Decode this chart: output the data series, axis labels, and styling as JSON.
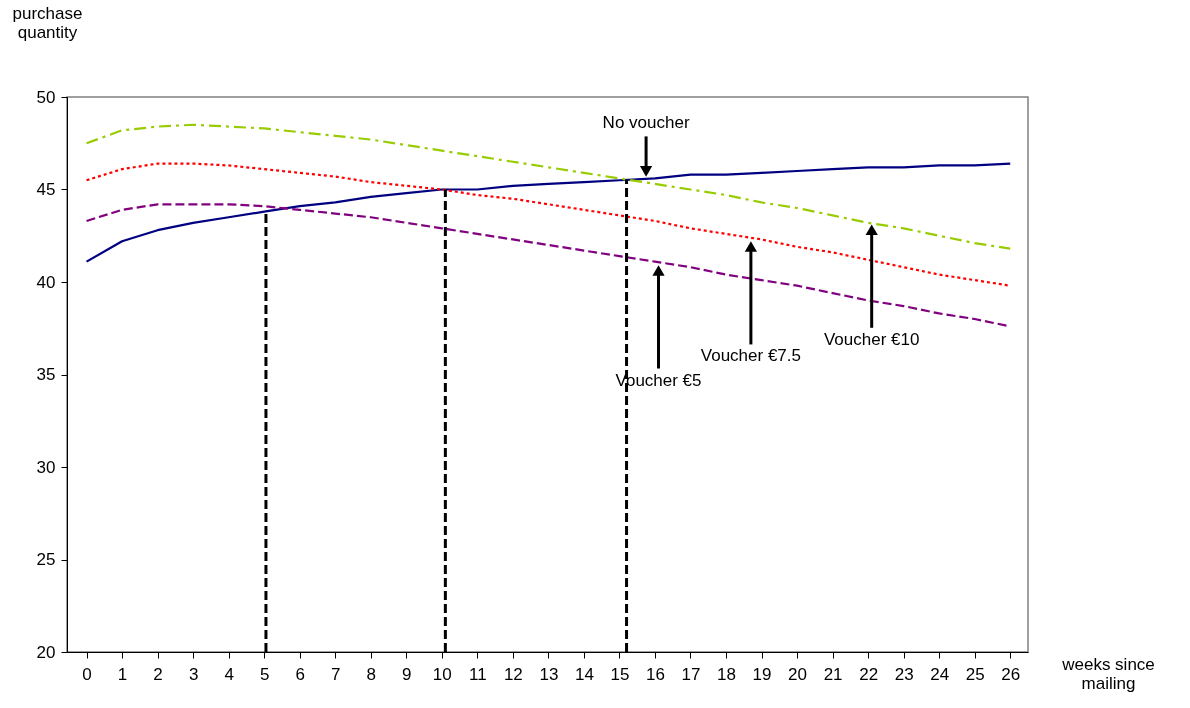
{
  "chart_data": {
    "type": "line",
    "xlabel": "weeks since\nmailing",
    "ylabel": "purchase\nquantity",
    "xlim": [
      -0.55,
      26.5
    ],
    "xticks": [
      0,
      1,
      2,
      3,
      4,
      5,
      6,
      7,
      8,
      9,
      10,
      11,
      12,
      13,
      14,
      15,
      16,
      17,
      18,
      19,
      20,
      21,
      22,
      23,
      24,
      25,
      26
    ],
    "ylim": [
      20,
      50
    ],
    "yticks": [
      20,
      25,
      30,
      35,
      40,
      45,
      50
    ],
    "grid": false,
    "x": [
      0,
      1,
      2,
      3,
      4,
      5,
      6,
      7,
      8,
      9,
      10,
      11,
      12,
      13,
      14,
      15,
      16,
      17,
      18,
      19,
      20,
      21,
      22,
      23,
      24,
      25,
      26
    ],
    "series": [
      {
        "color": "#000080",
        "line_style": "solid",
        "values": [
          41.1,
          42.2,
          42.8,
          43.2,
          43.5,
          43.8,
          44.1,
          44.3,
          44.6,
          44.8,
          45.0,
          45.0,
          45.2,
          45.3,
          45.4,
          45.5,
          45.6,
          45.8,
          45.8,
          45.9,
          46.0,
          46.1,
          46.2,
          46.2,
          46.3,
          46.3,
          46.4
        ]
      },
      {
        "color": "#800080",
        "line_style": "dashed",
        "values": [
          43.3,
          43.9,
          44.2,
          44.2,
          44.2,
          44.1,
          43.9,
          43.7,
          43.5,
          43.2,
          42.9,
          42.6,
          42.3,
          42.0,
          41.7,
          41.4,
          41.1,
          40.8,
          40.4,
          40.1,
          39.8,
          39.4,
          39.0,
          38.7,
          38.3,
          38.0,
          37.6
        ]
      },
      {
        "color": "#ff0000",
        "line_style": "dotted",
        "values": [
          45.5,
          46.1,
          46.4,
          46.4,
          46.3,
          46.1,
          45.9,
          45.7,
          45.4,
          45.2,
          45.0,
          44.7,
          44.5,
          44.2,
          43.9,
          43.6,
          43.3,
          42.9,
          42.6,
          42.3,
          41.9,
          41.6,
          41.2,
          40.8,
          40.4,
          40.1,
          39.8
        ]
      },
      {
        "color": "#99cc00",
        "line_style": "dashdot",
        "values": [
          47.5,
          48.2,
          48.4,
          48.5,
          48.4,
          48.3,
          48.1,
          47.9,
          47.7,
          47.4,
          47.1,
          46.8,
          46.5,
          46.2,
          45.9,
          45.6,
          45.3,
          45.0,
          44.7,
          44.3,
          44.0,
          43.6,
          43.2,
          42.9,
          42.5,
          42.1,
          41.8
        ]
      }
    ],
    "ref_lines": [
      {
        "axis": "x",
        "value": 5.05,
        "color": "#000000",
        "line_style": "dashed"
      },
      {
        "axis": "x",
        "value": 10.1,
        "color": "#000000",
        "line_style": "dashed"
      },
      {
        "axis": "x",
        "value": 15.2,
        "color": "#000000",
        "line_style": "dashed"
      }
    ],
    "annotations": [
      {
        "text": "No voucher",
        "x": 15.75,
        "y": 45.6
      },
      {
        "text": "Voucher €5",
        "x": 16.1,
        "y": 41.0
      },
      {
        "text": "Voucher €7.5",
        "x": 18.7,
        "y": 42.3
      },
      {
        "text": "Voucher €10",
        "x": 22.1,
        "y": 43.2
      }
    ]
  }
}
